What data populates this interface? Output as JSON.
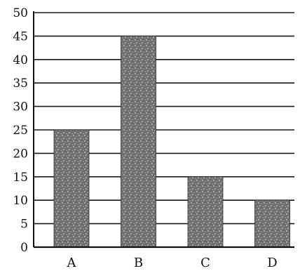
{
  "chart_data": {
    "type": "bar",
    "categories": [
      "A",
      "B",
      "C",
      "D"
    ],
    "values": [
      25,
      45,
      15,
      10
    ],
    "title": "",
    "xlabel": "",
    "ylabel": "",
    "ylim": [
      0,
      50
    ],
    "yticks": [
      0,
      5,
      10,
      15,
      20,
      25,
      30,
      35,
      40,
      45,
      50
    ],
    "grid": true,
    "legend": "none"
  },
  "colors": {
    "bar_fill": "#6e6e6e",
    "bar_speckle": "#d9d9d9",
    "grid": "#1a1a1a",
    "axis": "#111111"
  }
}
